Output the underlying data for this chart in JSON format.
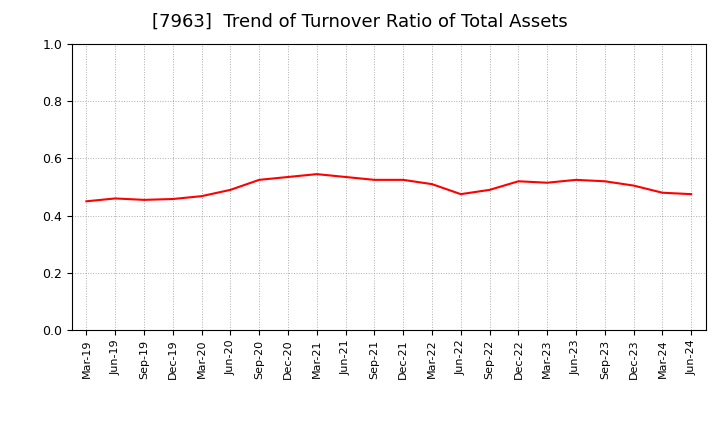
{
  "title": "[7963]  Trend of Turnover Ratio of Total Assets",
  "title_fontsize": 13,
  "line_color": "#FF0000",
  "line_width": 1.5,
  "background_color": "#FFFFFF",
  "grid_color": "#999999",
  "ylim": [
    0.0,
    1.0
  ],
  "yticks": [
    0.0,
    0.2,
    0.4,
    0.6,
    0.8,
    1.0
  ],
  "x_labels": [
    "Mar-19",
    "Jun-19",
    "Sep-19",
    "Dec-19",
    "Mar-20",
    "Jun-20",
    "Sep-20",
    "Dec-20",
    "Mar-21",
    "Jun-21",
    "Sep-21",
    "Dec-21",
    "Mar-22",
    "Jun-22",
    "Sep-22",
    "Dec-22",
    "Mar-23",
    "Jun-23",
    "Sep-23",
    "Dec-23",
    "Mar-24",
    "Jun-24"
  ],
  "values": [
    0.45,
    0.46,
    0.455,
    0.458,
    0.468,
    0.49,
    0.525,
    0.535,
    0.545,
    0.535,
    0.525,
    0.525,
    0.51,
    0.475,
    0.49,
    0.52,
    0.515,
    0.525,
    0.52,
    0.505,
    0.48,
    0.475
  ]
}
